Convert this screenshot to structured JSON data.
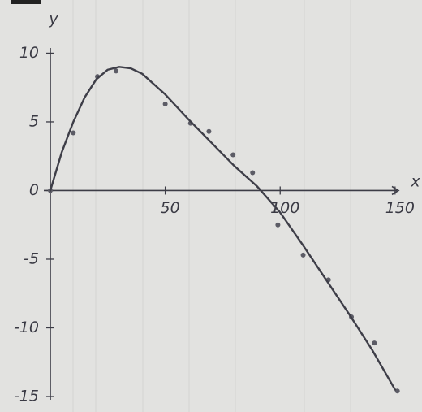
{
  "chart_data": {
    "type": "scatter",
    "x_label": "x",
    "y_label": "y",
    "xlim": [
      0,
      155
    ],
    "ylim": [
      -15,
      10.5
    ],
    "xticks": [
      50,
      100,
      150
    ],
    "yticks": [
      10,
      5,
      0,
      -5,
      -10,
      -15
    ],
    "series": [
      {
        "type": "scatter",
        "color": "#5c5c66",
        "x": [
          0,
          10,
          20.5,
          28.6,
          50,
          61,
          69,
          79.5,
          88,
          99,
          110,
          121,
          131,
          141,
          151
        ],
        "values": [
          0,
          4.2,
          8.3,
          8.7,
          6.3,
          4.9,
          4.3,
          2.6,
          1.3,
          -2.5,
          -4.7,
          -6.5,
          -9.2,
          -11.1,
          -14.6
        ]
      },
      {
        "type": "line",
        "color": "#3e3e48",
        "x": [
          0,
          5,
          10,
          15,
          20,
          25,
          30,
          35,
          40,
          50,
          60,
          70,
          80,
          90,
          100,
          110,
          120,
          130,
          140,
          150
        ],
        "values": [
          0,
          2.8,
          5,
          6.8,
          8.1,
          8.8,
          9,
          8.9,
          8.5,
          7,
          5.2,
          3.5,
          1.8,
          0.3,
          -1.6,
          -4,
          -6.5,
          -9,
          -11.6,
          -14.5
        ]
      }
    ]
  }
}
